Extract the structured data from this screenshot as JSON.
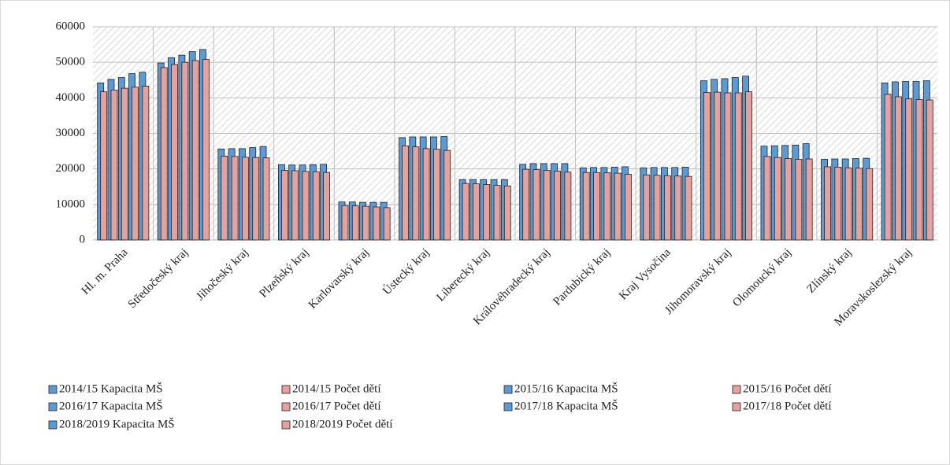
{
  "chart_data": {
    "type": "bar",
    "categories": [
      "Hl. m. Praha",
      "Středočeský kraj",
      "Jihočeský kraj",
      "Plzeňský kraj",
      "Karlovarský kraj",
      "Ústecký kraj",
      "Liberecký kraj",
      "Královéhradecký kraj",
      "Pardubický kraj",
      "Kraj Vysočina",
      "Jihomoravský kraj",
      "Olomoucký kraj",
      "Zlínský kraj",
      "Moravskoslezský kraj"
    ],
    "series": [
      {
        "name": "2014/15 Kapacita MŠ",
        "color": "#5b9bd5",
        "values": [
          44200,
          49800,
          25600,
          21200,
          10700,
          28800,
          17000,
          21300,
          20300,
          20300,
          44800,
          26400,
          22700,
          44200
        ]
      },
      {
        "name": "2014/15 Počet dětí",
        "color": "#e6a19d",
        "values": [
          41700,
          48500,
          23600,
          19600,
          9700,
          26500,
          15900,
          19900,
          19000,
          18300,
          41500,
          23500,
          20600,
          41000
        ]
      },
      {
        "name": "2015/16 Kapacita MŠ",
        "color": "#5b9bd5",
        "values": [
          45200,
          51300,
          25700,
          21100,
          10700,
          29000,
          17000,
          21500,
          20400,
          20400,
          45200,
          26500,
          22800,
          44500
        ]
      },
      {
        "name": "2015/16 Počet dětí",
        "color": "#e6a19d",
        "values": [
          42200,
          49400,
          23500,
          19500,
          9600,
          26200,
          15800,
          19800,
          19000,
          18200,
          41600,
          23200,
          20500,
          40300
        ]
      },
      {
        "name": "2016/17 Kapacita MŠ",
        "color": "#5b9bd5",
        "values": [
          45700,
          52000,
          25700,
          21100,
          10600,
          29000,
          17000,
          21500,
          20400,
          20400,
          45400,
          26600,
          22800,
          44600
        ]
      },
      {
        "name": "2016/17 Počet dětí",
        "color": "#e6a19d",
        "values": [
          42700,
          50000,
          23300,
          19300,
          9500,
          25700,
          15600,
          19600,
          18900,
          18100,
          41400,
          22900,
          20300,
          39700
        ]
      },
      {
        "name": "2017/18 Kapacita MŠ",
        "color": "#5b9bd5",
        "values": [
          46800,
          53000,
          26000,
          21200,
          10600,
          29000,
          17000,
          21500,
          20500,
          20400,
          45700,
          26700,
          22900,
          44600
        ]
      },
      {
        "name": "2017/18 Počet dětí",
        "color": "#e6a19d",
        "values": [
          43000,
          50500,
          23200,
          19200,
          9300,
          25500,
          15400,
          19400,
          18800,
          18000,
          41400,
          22700,
          20200,
          39500
        ]
      },
      {
        "name": "2018/2019 Kapacita MŠ",
        "color": "#5b9bd5",
        "values": [
          47200,
          53600,
          26300,
          21300,
          10600,
          29100,
          17000,
          21500,
          20600,
          20500,
          46100,
          27100,
          23000,
          44800
        ]
      },
      {
        "name": "2018/2019 Počet dětí",
        "color": "#e6a19d",
        "values": [
          43300,
          50800,
          23100,
          19000,
          9100,
          25200,
          15200,
          19100,
          18500,
          17900,
          41700,
          22800,
          20100,
          39400
        ]
      }
    ],
    "ylim": [
      0,
      60000
    ],
    "yticks": [
      0,
      10000,
      20000,
      30000,
      40000,
      50000,
      60000
    ],
    "grid": true,
    "legend": "bottom"
  }
}
